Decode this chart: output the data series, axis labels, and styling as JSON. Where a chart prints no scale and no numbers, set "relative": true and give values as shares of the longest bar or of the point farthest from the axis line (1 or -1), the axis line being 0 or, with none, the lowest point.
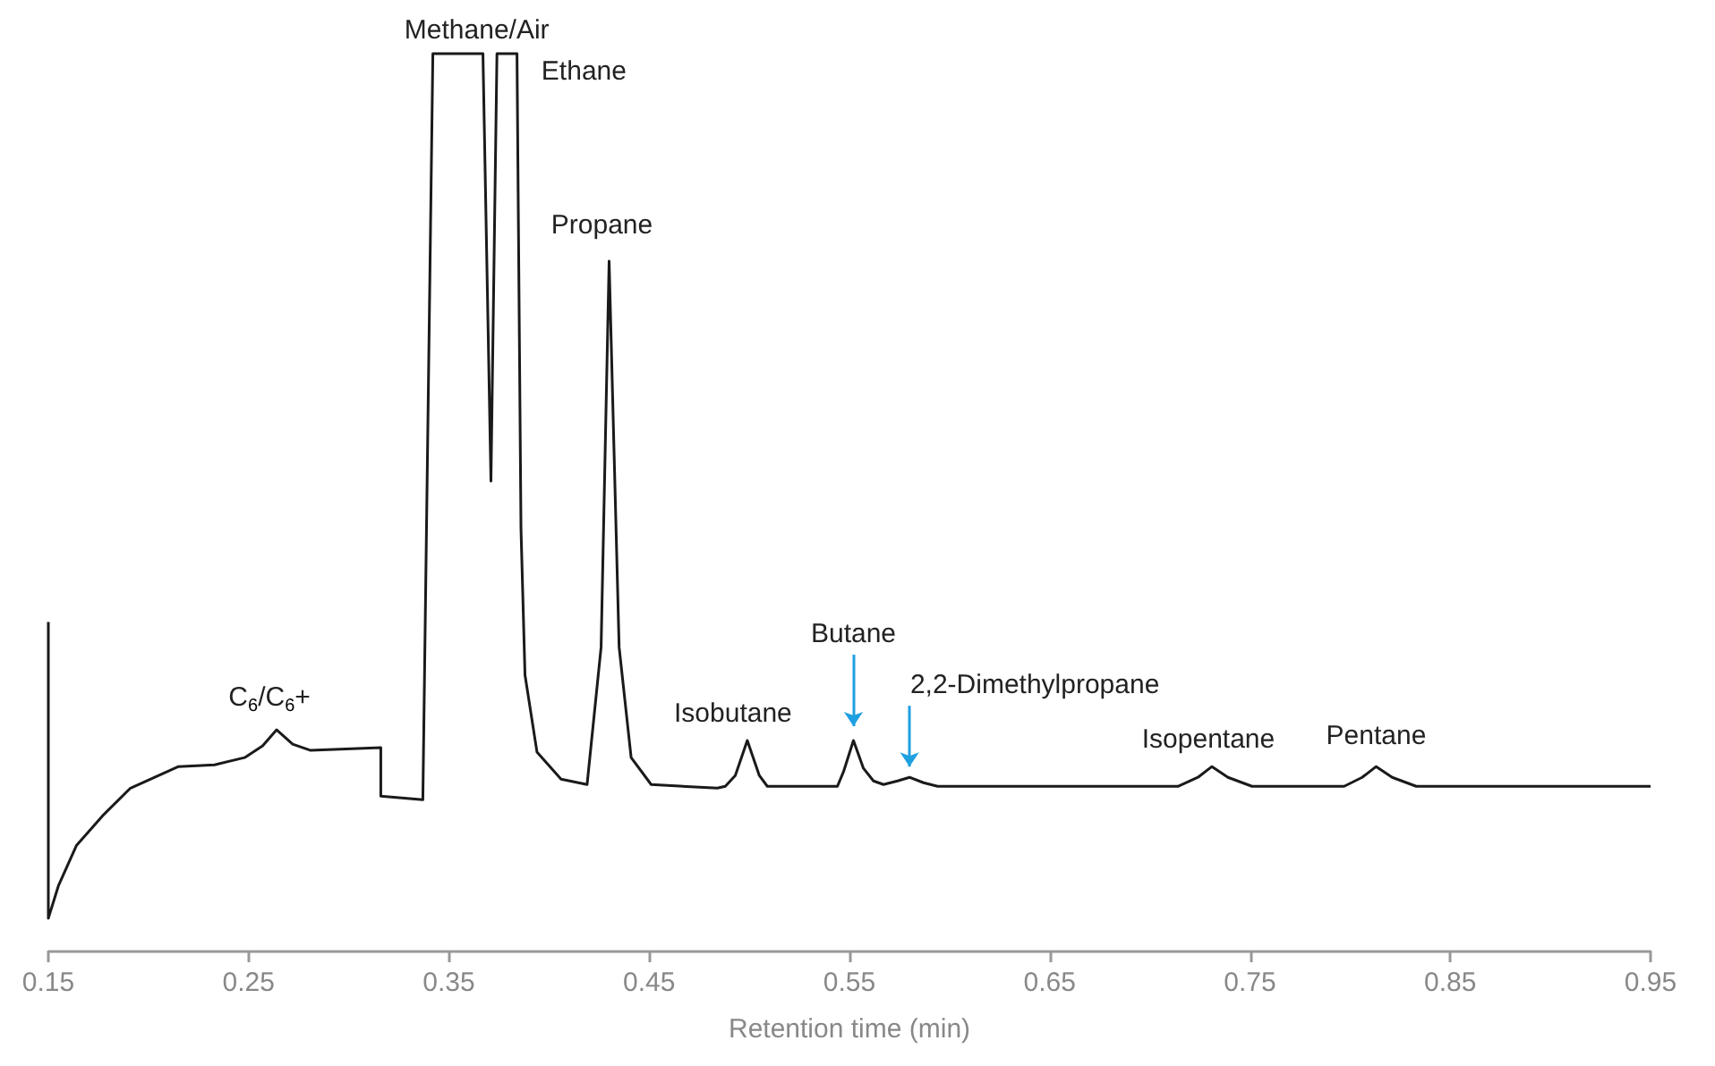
{
  "chart_data": {
    "type": "line",
    "relative": true,
    "xlabel": "Retention time (min)",
    "xlim": [
      0.15,
      0.95
    ],
    "xticks": [
      0.15,
      0.25,
      0.35,
      0.45,
      0.55,
      0.65,
      0.75,
      0.85,
      0.95
    ],
    "marker": "none",
    "line_style": "solid",
    "series": [
      {
        "color": "#1a1a1a",
        "x": [
          0.15,
          0.15,
          0.155,
          0.164,
          0.177,
          0.191,
          0.215,
          0.233,
          0.248,
          0.257,
          0.264,
          0.272,
          0.281,
          0.316,
          0.316,
          0.337,
          0.342,
          0.367,
          0.371,
          0.374,
          0.384,
          0.386,
          0.388,
          0.394,
          0.406,
          0.419,
          0.426,
          0.43,
          0.435,
          0.441,
          0.451,
          0.484,
          0.488,
          0.493,
          0.499,
          0.505,
          0.509,
          0.544,
          0.547,
          0.552,
          0.557,
          0.562,
          0.567,
          0.574,
          0.58,
          0.587,
          0.594,
          0.714,
          0.724,
          0.731,
          0.739,
          0.751,
          0.797,
          0.806,
          0.813,
          0.821,
          0.833,
          0.95
        ],
        "values": [
          0.367,
          0.037,
          0.073,
          0.118,
          0.151,
          0.182,
          0.206,
          0.208,
          0.216,
          0.229,
          0.247,
          0.231,
          0.224,
          0.227,
          0.173,
          0.169,
          1,
          1,
          0.524,
          1,
          1,
          0.471,
          0.308,
          0.222,
          0.192,
          0.186,
          0.339,
          0.769,
          0.339,
          0.216,
          0.186,
          0.182,
          0.184,
          0.196,
          0.235,
          0.196,
          0.184,
          0.184,
          0.2,
          0.235,
          0.204,
          0.19,
          0.186,
          0.19,
          0.194,
          0.188,
          0.184,
          0.184,
          0.194,
          0.206,
          0.194,
          0.184,
          0.184,
          0.194,
          0.206,
          0.194,
          0.184,
          0.184
        ]
      }
    ],
    "annotations": [
      {
        "text": "C$_{6}$/C$_{6}$+",
        "x": 0.264,
        "y": 0.247
      },
      {
        "text": "Methane/Air",
        "x": 0.355,
        "y": 1
      },
      {
        "text": "Ethane",
        "x": 0.379,
        "y": 1
      },
      {
        "text": "Propane",
        "x": 0.43,
        "y": 0.769
      },
      {
        "text": "Isobutane",
        "x": 0.499,
        "y": 0.235
      },
      {
        "text": "Butane",
        "x": 0.552,
        "y": 0.235
      },
      {
        "text": "2,2-Dimethylpropane",
        "x": 0.58,
        "y": 0.194
      },
      {
        "text": "Isopentane",
        "x": 0.731,
        "y": 0.206
      },
      {
        "text": "Pentane",
        "x": 0.813,
        "y": 0.206
      }
    ]
  }
}
